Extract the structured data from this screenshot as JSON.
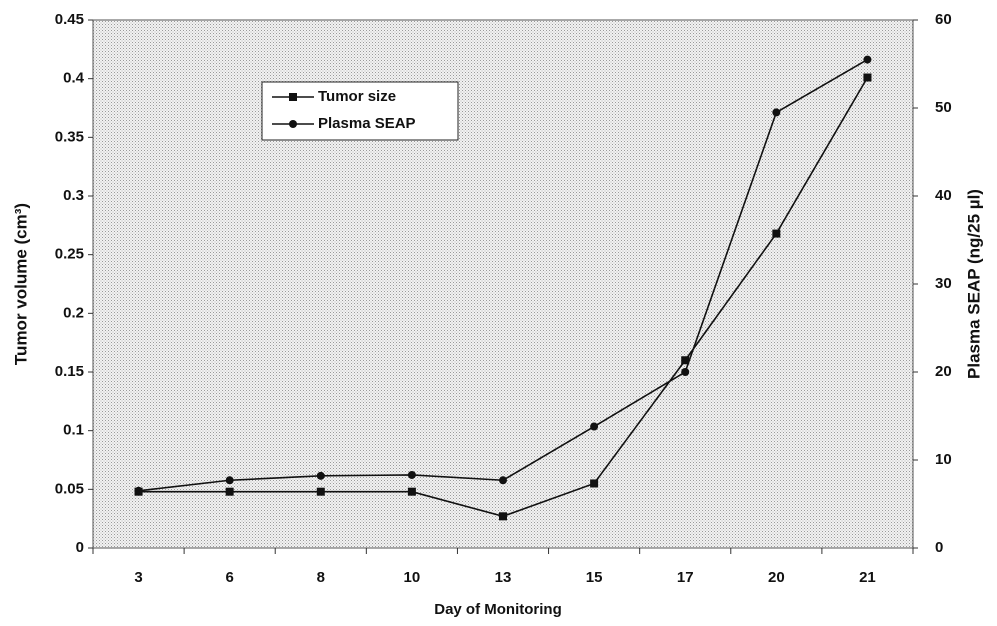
{
  "chart_data": {
    "type": "line",
    "x_label": "Day of Monitoring",
    "y_label": "Tumor volume (cm³)",
    "y2_label": "Plasma SEAP (ng/25 µl)",
    "categories": [
      "3",
      "6",
      "8",
      "10",
      "13",
      "15",
      "17",
      "20",
      "21"
    ],
    "series": [
      {
        "name": "Tumor size",
        "color": "#111111",
        "marker": "square",
        "values": [
          0.048,
          0.048,
          0.048,
          0.048,
          0.027,
          0.055,
          0.16,
          0.268,
          0.401
        ]
      },
      {
        "name": "Plasma SEAP",
        "color": "#111111",
        "marker": "circle",
        "axis": "y2",
        "values": [
          6.5,
          7.7,
          8.2,
          8.3,
          7.7,
          13.8,
          20,
          49.5,
          55.5
        ]
      }
    ],
    "ylim": [
      0,
      0.45
    ],
    "yticks": [
      0,
      0.05,
      0.1,
      0.15,
      0.2,
      0.25,
      0.3,
      0.35,
      0.4,
      0.45
    ],
    "y2lim": [
      0,
      60
    ],
    "y2ticks": [
      0,
      10,
      20,
      30,
      40,
      50,
      60
    ],
    "grid": false
  }
}
